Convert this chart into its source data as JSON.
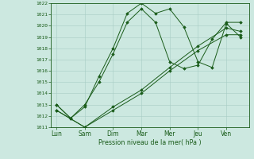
{
  "xlabel": "Pression niveau de la mer( hPa )",
  "x_labels": [
    "Lun",
    "Sam",
    "Dim",
    "Mar",
    "Mer",
    "Jeu",
    "Ven"
  ],
  "ylim": [
    1011,
    1022
  ],
  "yticks": [
    1011,
    1012,
    1013,
    1014,
    1015,
    1016,
    1017,
    1018,
    1019,
    1020,
    1021,
    1022
  ],
  "background_color": "#cce8e0",
  "grid_color": "#a8ccc4",
  "line_color": "#1a5c1a",
  "series": [
    {
      "x": [
        0,
        0.5,
        1.0,
        1.5,
        2.0,
        2.5,
        3.0,
        3.5,
        4.0,
        4.5,
        5.0,
        5.5,
        6.0,
        6.5
      ],
      "y": [
        1013.0,
        1011.8,
        1012.8,
        1015.5,
        1018.0,
        1021.1,
        1022.0,
        1021.1,
        1021.5,
        1019.9,
        1016.8,
        1016.3,
        1020.2,
        1019.0
      ]
    },
    {
      "x": [
        0,
        0.5,
        1.0,
        1.5,
        2.0,
        2.5,
        3.0,
        3.5,
        4.0,
        4.5,
        5.0,
        5.5,
        6.0,
        6.5
      ],
      "y": [
        1013.0,
        1011.8,
        1013.0,
        1015.0,
        1017.5,
        1020.3,
        1021.5,
        1020.3,
        1016.8,
        1016.2,
        1016.5,
        1018.8,
        1020.3,
        1020.3
      ]
    },
    {
      "x": [
        0,
        1.0,
        2.0,
        3.0,
        4.0,
        5.0,
        6.0,
        6.5
      ],
      "y": [
        1012.5,
        1011.0,
        1012.5,
        1014.0,
        1016.0,
        1017.8,
        1019.2,
        1019.2
      ]
    },
    {
      "x": [
        0,
        1.0,
        2.0,
        3.0,
        4.0,
        5.0,
        6.0,
        6.5
      ],
      "y": [
        1012.5,
        1011.0,
        1012.8,
        1014.3,
        1016.3,
        1018.2,
        1019.8,
        1019.5
      ]
    }
  ],
  "x_tick_positions": [
    0,
    1,
    2,
    3,
    4,
    5,
    6
  ],
  "figsize": [
    3.2,
    2.0
  ],
  "dpi": 100
}
